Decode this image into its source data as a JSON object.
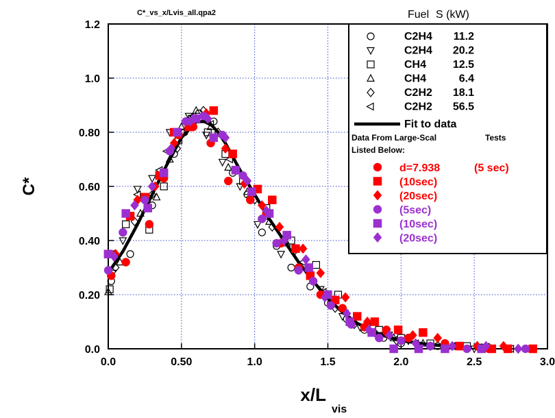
{
  "chart_data": {
    "type": "scatter",
    "file_label": "C*_vs_x/Lvis_all.qpa2",
    "xlabel": "x/L",
    "xlabel_sub": "vis",
    "ylabel": "C*",
    "xlim": [
      0,
      3.0
    ],
    "ylim": [
      0,
      1.2
    ],
    "grid": true,
    "legend_placement": "top-right",
    "x_ticks": [
      "0.0",
      "0.50",
      "1.0",
      "1.5",
      "2.0",
      "2.5",
      "3.0"
    ],
    "y_ticks": [
      "0.0",
      "0.20",
      "0.40",
      "0.60",
      "0.80",
      "1.0",
      "1.2"
    ],
    "legend_header": {
      "fuel": "Fuel",
      "size": "S (kW)"
    },
    "legend_note": [
      "Data From Large-Scal",
      "Tests",
      "Listed Below:"
    ],
    "colors": {
      "black": "#000000",
      "red": "#ff0000",
      "purple": "#9b30d0"
    },
    "series": [
      {
        "name": "C2H4",
        "size": "11.2",
        "marker": "circle-open",
        "color": "#000000",
        "points": [
          [
            0.02,
            0.25
          ],
          [
            0.15,
            0.35
          ],
          [
            0.3,
            0.53
          ],
          [
            0.45,
            0.72
          ],
          [
            0.52,
            0.8
          ],
          [
            0.62,
            0.87
          ],
          [
            0.72,
            0.84
          ],
          [
            0.85,
            0.65
          ],
          [
            0.95,
            0.57
          ],
          [
            1.05,
            0.43
          ],
          [
            1.15,
            0.38
          ],
          [
            1.25,
            0.3
          ],
          [
            1.38,
            0.23
          ],
          [
            1.5,
            0.17
          ],
          [
            1.63,
            0.11
          ],
          [
            1.75,
            0.07
          ],
          [
            1.88,
            0.04
          ],
          [
            2.0,
            0.02
          ],
          [
            2.25,
            0.01
          ],
          [
            2.55,
            0.005
          ]
        ]
      },
      {
        "name": "C2H4",
        "size": "20.2",
        "marker": "triangle-down-open",
        "color": "#000000",
        "points": [
          [
            0.03,
            0.28
          ],
          [
            0.1,
            0.4
          ],
          [
            0.2,
            0.59
          ],
          [
            0.3,
            0.63
          ],
          [
            0.42,
            0.8
          ],
          [
            0.55,
            0.86
          ],
          [
            0.67,
            0.79
          ],
          [
            0.78,
            0.69
          ],
          [
            0.9,
            0.6
          ],
          [
            1.02,
            0.46
          ],
          [
            1.18,
            0.35
          ],
          [
            1.3,
            0.29
          ],
          [
            1.45,
            0.22
          ],
          [
            1.6,
            0.12
          ],
          [
            1.72,
            0.08
          ],
          [
            1.85,
            0.05
          ],
          [
            2.05,
            0.03
          ],
          [
            2.3,
            0.01
          ],
          [
            2.5,
            0.0
          ]
        ]
      },
      {
        "name": "CH4",
        "size": "12.5",
        "marker": "square-open",
        "color": "#000000",
        "points": [
          [
            0.01,
            0.22
          ],
          [
            0.12,
            0.46
          ],
          [
            0.28,
            0.44
          ],
          [
            0.38,
            0.6
          ],
          [
            0.48,
            0.77
          ],
          [
            0.57,
            0.85
          ],
          [
            0.68,
            0.8
          ],
          [
            0.8,
            0.72
          ],
          [
            0.92,
            0.62
          ],
          [
            1.08,
            0.52
          ],
          [
            1.25,
            0.4
          ],
          [
            1.42,
            0.31
          ],
          [
            1.57,
            0.2
          ],
          [
            1.7,
            0.12
          ],
          [
            1.85,
            0.07
          ],
          [
            2.0,
            0.04
          ],
          [
            2.2,
            0.02
          ],
          [
            2.45,
            0.01
          ]
        ]
      },
      {
        "name": "CH4",
        "size": "6.4",
        "marker": "triangle-up-open",
        "color": "#000000",
        "points": [
          [
            0.0,
            0.21
          ],
          [
            0.08,
            0.32
          ],
          [
            0.22,
            0.5
          ],
          [
            0.33,
            0.56
          ],
          [
            0.42,
            0.7
          ],
          [
            0.5,
            0.82
          ],
          [
            0.6,
            0.88
          ],
          [
            0.7,
            0.82
          ],
          [
            0.82,
            0.67
          ],
          [
            0.95,
            0.58
          ],
          [
            1.1,
            0.47
          ],
          [
            1.22,
            0.39
          ],
          [
            1.37,
            0.29
          ],
          [
            1.52,
            0.18
          ],
          [
            1.67,
            0.1
          ],
          [
            1.8,
            0.06
          ],
          [
            1.95,
            0.04
          ],
          [
            2.15,
            0.02
          ],
          [
            2.4,
            0.01
          ]
        ]
      },
      {
        "name": "C2H2",
        "size": "18.1",
        "marker": "diamond-open",
        "color": "#000000",
        "points": [
          [
            0.05,
            0.3
          ],
          [
            0.18,
            0.47
          ],
          [
            0.3,
            0.57
          ],
          [
            0.47,
            0.74
          ],
          [
            0.55,
            0.84
          ],
          [
            0.65,
            0.88
          ],
          [
            0.75,
            0.8
          ],
          [
            0.88,
            0.66
          ],
          [
            1.0,
            0.55
          ],
          [
            1.12,
            0.45
          ],
          [
            1.27,
            0.36
          ],
          [
            1.4,
            0.25
          ],
          [
            1.55,
            0.15
          ],
          [
            1.68,
            0.09
          ],
          [
            1.82,
            0.06
          ],
          [
            1.97,
            0.03
          ],
          [
            2.2,
            0.01
          ],
          [
            2.6,
            0.005
          ]
        ]
      },
      {
        "name": "C2H2",
        "size": "56.5",
        "marker": "triangle-left-open",
        "color": "#000000",
        "points": [
          [
            0.02,
            0.35
          ],
          [
            0.2,
            0.57
          ],
          [
            0.35,
            0.66
          ],
          [
            0.4,
            0.73
          ],
          [
            0.5,
            0.8
          ],
          [
            0.58,
            0.86
          ],
          [
            0.7,
            0.83
          ],
          [
            0.83,
            0.7
          ],
          [
            0.97,
            0.56
          ],
          [
            1.07,
            0.49
          ],
          [
            1.2,
            0.41
          ],
          [
            1.33,
            0.32
          ],
          [
            1.47,
            0.21
          ],
          [
            1.62,
            0.13
          ],
          [
            1.77,
            0.08
          ],
          [
            1.92,
            0.05
          ],
          [
            2.1,
            0.02
          ],
          [
            2.35,
            0.01
          ],
          [
            2.75,
            0.0
          ]
        ]
      },
      {
        "name": "d=7.938",
        "size": "(5 sec)",
        "marker": "circle-filled",
        "color": "#ff0000",
        "points": [
          [
            0.02,
            0.27
          ],
          [
            0.12,
            0.32
          ],
          [
            0.28,
            0.46
          ],
          [
            0.38,
            0.63
          ],
          [
            0.48,
            0.79
          ],
          [
            0.58,
            0.82
          ],
          [
            0.7,
            0.76
          ],
          [
            0.82,
            0.62
          ],
          [
            0.97,
            0.55
          ],
          [
            1.08,
            0.5
          ],
          [
            1.18,
            0.39
          ],
          [
            1.3,
            0.3
          ],
          [
            1.45,
            0.2
          ],
          [
            1.6,
            0.15
          ],
          [
            1.75,
            0.08
          ],
          [
            1.9,
            0.07
          ],
          [
            2.05,
            0.04
          ],
          [
            2.3,
            0.02
          ],
          [
            2.6,
            0.0
          ]
        ]
      },
      {
        "name": "",
        "size": "(10sec)",
        "marker": "square-filled",
        "color": "#ff0000",
        "points": [
          [
            0.0,
            0.35
          ],
          [
            0.15,
            0.49
          ],
          [
            0.25,
            0.56
          ],
          [
            0.35,
            0.64
          ],
          [
            0.45,
            0.8
          ],
          [
            0.55,
            0.82
          ],
          [
            0.72,
            0.88
          ],
          [
            0.85,
            0.72
          ],
          [
            1.02,
            0.59
          ],
          [
            1.12,
            0.55
          ],
          [
            1.28,
            0.37
          ],
          [
            1.38,
            0.27
          ],
          [
            1.55,
            0.18
          ],
          [
            1.7,
            0.12
          ],
          [
            1.82,
            0.1
          ],
          [
            1.98,
            0.07
          ],
          [
            2.15,
            0.06
          ],
          [
            2.4,
            0.01
          ],
          [
            2.62,
            0.0
          ],
          [
            2.73,
            0.0
          ],
          [
            2.9,
            0.0
          ]
        ]
      },
      {
        "name": "",
        "size": "(20sec)",
        "marker": "diamond-filled",
        "color": "#ff0000",
        "points": [
          [
            0.05,
            0.35
          ],
          [
            0.2,
            0.55
          ],
          [
            0.32,
            0.6
          ],
          [
            0.45,
            0.76
          ],
          [
            0.55,
            0.83
          ],
          [
            0.67,
            0.87
          ],
          [
            0.8,
            0.74
          ],
          [
            0.93,
            0.61
          ],
          [
            1.05,
            0.53
          ],
          [
            1.17,
            0.45
          ],
          [
            1.33,
            0.37
          ],
          [
            1.45,
            0.28
          ],
          [
            1.62,
            0.19
          ],
          [
            1.77,
            0.1
          ],
          [
            1.9,
            0.06
          ],
          [
            2.08,
            0.05
          ],
          [
            2.25,
            0.04
          ],
          [
            2.52,
            0.01
          ],
          [
            2.7,
            0.01
          ]
        ]
      },
      {
        "name": "",
        "size": "(5sec)",
        "marker": "circle-filled",
        "color": "#9b30d0",
        "points": [
          [
            0.0,
            0.29
          ],
          [
            0.1,
            0.43
          ],
          [
            0.25,
            0.55
          ],
          [
            0.42,
            0.73
          ],
          [
            0.53,
            0.84
          ],
          [
            0.65,
            0.86
          ],
          [
            0.78,
            0.79
          ],
          [
            0.92,
            0.64
          ],
          [
            1.05,
            0.48
          ],
          [
            1.15,
            0.39
          ],
          [
            1.3,
            0.29
          ],
          [
            1.4,
            0.25
          ],
          [
            1.52,
            0.16
          ],
          [
            1.66,
            0.09
          ],
          [
            1.85,
            0.04
          ],
          [
            2.0,
            0.03
          ],
          [
            2.2,
            0.01
          ],
          [
            2.45,
            0.0
          ],
          [
            2.85,
            0.0
          ]
        ]
      },
      {
        "name": "",
        "size": "(10sec)",
        "marker": "square-filled",
        "color": "#9b30d0",
        "points": [
          [
            0.0,
            0.35
          ],
          [
            0.12,
            0.5
          ],
          [
            0.27,
            0.52
          ],
          [
            0.38,
            0.65
          ],
          [
            0.47,
            0.8
          ],
          [
            0.6,
            0.85
          ],
          [
            0.72,
            0.78
          ],
          [
            0.87,
            0.66
          ],
          [
            0.98,
            0.58
          ],
          [
            1.1,
            0.5
          ],
          [
            1.22,
            0.42
          ],
          [
            1.37,
            0.3
          ],
          [
            1.5,
            0.2
          ],
          [
            1.65,
            0.1
          ],
          [
            1.8,
            0.06
          ],
          [
            1.95,
            0.0
          ],
          [
            2.12,
            0.0
          ],
          [
            2.3,
            0.0
          ],
          [
            2.55,
            0.0
          ]
        ]
      },
      {
        "name": "",
        "size": "(20sec)",
        "marker": "diamond-filled",
        "color": "#9b30d0",
        "points": [
          [
            0.04,
            0.34
          ],
          [
            0.18,
            0.53
          ],
          [
            0.3,
            0.6
          ],
          [
            0.43,
            0.74
          ],
          [
            0.56,
            0.84
          ],
          [
            0.68,
            0.85
          ],
          [
            0.8,
            0.78
          ],
          [
            0.95,
            0.62
          ],
          [
            1.08,
            0.51
          ],
          [
            1.2,
            0.4
          ],
          [
            1.35,
            0.33
          ],
          [
            1.48,
            0.19
          ],
          [
            1.63,
            0.13
          ],
          [
            1.78,
            0.07
          ],
          [
            1.92,
            0.05
          ],
          [
            2.1,
            0.02
          ],
          [
            2.35,
            0.01
          ],
          [
            2.58,
            0.01
          ],
          [
            2.8,
            0.0
          ]
        ]
      },
      {
        "name": "Fit to data",
        "marker": "line",
        "color": "#000000",
        "points": [
          [
            0.0,
            0.28
          ],
          [
            0.1,
            0.36
          ],
          [
            0.2,
            0.46
          ],
          [
            0.3,
            0.57
          ],
          [
            0.4,
            0.68
          ],
          [
            0.5,
            0.78
          ],
          [
            0.6,
            0.838
          ],
          [
            0.65,
            0.84
          ],
          [
            0.7,
            0.83
          ],
          [
            0.75,
            0.8
          ],
          [
            0.8,
            0.76
          ],
          [
            0.9,
            0.66
          ],
          [
            1.0,
            0.57
          ],
          [
            1.1,
            0.48
          ],
          [
            1.2,
            0.4
          ],
          [
            1.3,
            0.32
          ],
          [
            1.4,
            0.25
          ],
          [
            1.5,
            0.185
          ],
          [
            1.6,
            0.135
          ],
          [
            1.7,
            0.095
          ],
          [
            1.8,
            0.065
          ],
          [
            1.9,
            0.045
          ],
          [
            2.0,
            0.03
          ],
          [
            2.2,
            0.015
          ],
          [
            2.4,
            0.007
          ]
        ]
      }
    ]
  }
}
